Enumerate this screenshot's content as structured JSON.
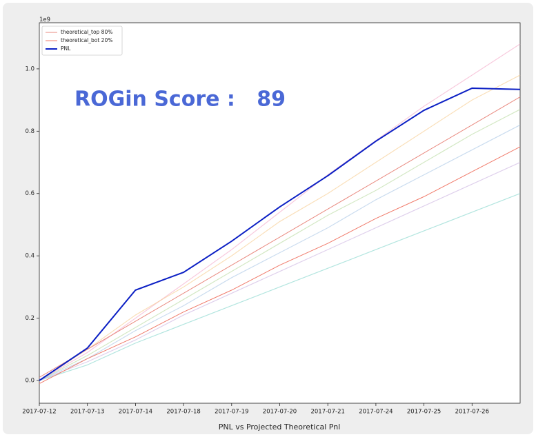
{
  "chart_data": {
    "type": "line",
    "annotation": "ROGin Score :   89",
    "xlabel": "PNL vs Projected Theoretical Pnl",
    "y_offset_label": "1e9",
    "categories": [
      "2017-07-12",
      "2017-07-13",
      "2017-07-14",
      "2017-07-18",
      "2017-07-19",
      "2017-07-20",
      "2017-07-21",
      "2017-07-24",
      "2017-07-25",
      "2017-07-26",
      null
    ],
    "ylim": [
      -0.073,
      1.148
    ],
    "yticks": [
      {
        "value": 0,
        "label": "0.0"
      },
      0.2,
      0.4,
      0.6,
      0.8,
      {
        "value": 1,
        "label": "1.0"
      }
    ],
    "legend": "upper left",
    "series": [
      {
        "color": "#f4a6c6",
        "values": [
          0,
          0.09,
          0.2,
          0.31,
          0.42,
          0.54,
          0.66,
          0.77,
          0.88,
          0.98,
          1.08
        ]
      },
      {
        "color": "#7fd3c9",
        "values": [
          0,
          0.05,
          0.12,
          0.18,
          0.24,
          0.3,
          0.36,
          0.42,
          0.48,
          0.54,
          0.6
        ]
      },
      {
        "color": "#f7c98b",
        "values": [
          0,
          0.1,
          0.21,
          0.3,
          0.4,
          0.51,
          0.6,
          0.7,
          0.8,
          0.9,
          0.98
        ]
      },
      {
        "color": "#a7c4e5",
        "values": [
          0,
          0.07,
          0.16,
          0.24,
          0.33,
          0.41,
          0.49,
          0.58,
          0.66,
          0.74,
          0.82
        ]
      },
      {
        "color": "#c9b0e0",
        "values": [
          0,
          0.06,
          0.13,
          0.21,
          0.28,
          0.35,
          0.42,
          0.49,
          0.56,
          0.63,
          0.7
        ]
      },
      {
        "color": "#b5d99c",
        "values": [
          0,
          0.08,
          0.17,
          0.26,
          0.35,
          0.44,
          0.53,
          0.61,
          0.7,
          0.79,
          0.87
        ]
      },
      {
        "name": "theoretical_top 80%",
        "color": "#e9897f",
        "values": [
          0.01,
          0.1,
          0.19,
          0.28,
          0.37,
          0.46,
          0.55,
          0.64,
          0.73,
          0.82,
          0.91
        ]
      },
      {
        "name": "theoretical_bot 20%",
        "color": "#f07a6a",
        "values": [
          -0.01,
          0.07,
          0.14,
          0.22,
          0.29,
          0.37,
          0.44,
          0.52,
          0.59,
          0.67,
          0.75
        ]
      },
      {
        "name": "PNL",
        "color": "#0b1fc4",
        "width": 2,
        "values": [
          0,
          0.104,
          0.29,
          0.347,
          0.447,
          0.557,
          0.657,
          0.768,
          0.867,
          0.938,
          0.934
        ]
      }
    ]
  }
}
